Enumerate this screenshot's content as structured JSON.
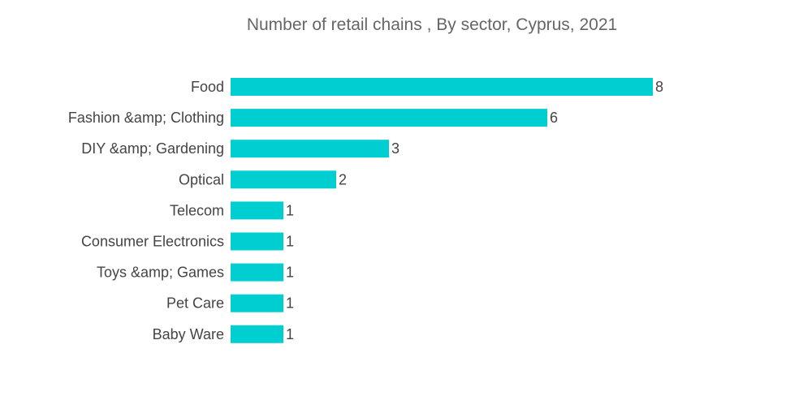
{
  "chart_data": {
    "type": "bar",
    "orientation": "horizontal",
    "title": "Number of retail chains , By sector, Cyprus, 2021",
    "categories": [
      "Food",
      "Fashion &amp; Clothing",
      "DIY &amp; Gardening",
      "Optical",
      "Telecom",
      "Consumer Electronics",
      "Toys &amp; Games",
      "Pet Care",
      "Baby Ware"
    ],
    "values": [
      8,
      6,
      3,
      2,
      1,
      1,
      1,
      1,
      1
    ],
    "xlim": [
      0,
      8
    ],
    "grid": false,
    "legend": "none",
    "bar_color": "#00CED1"
  }
}
